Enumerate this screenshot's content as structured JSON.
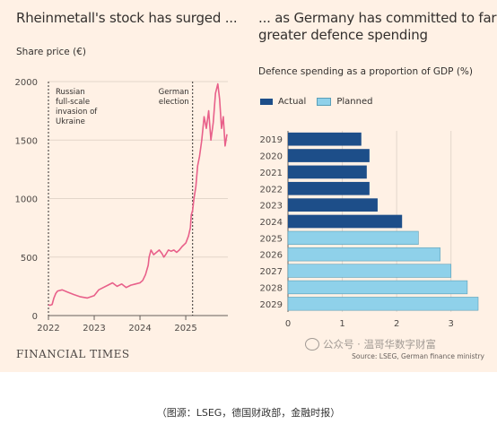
{
  "left_panel": {
    "title": "Rheinmetall's stock has surged ...",
    "subtitle": "Share price (€)",
    "annotations": [
      {
        "label_lines": [
          "Russian",
          "full-scale",
          "invasion of",
          "Ukraine"
        ],
        "x": 2022.0
      },
      {
        "label_lines": [
          "German",
          "election"
        ],
        "x": 2025.15
      }
    ]
  },
  "right_panel": {
    "title_lines": [
      "... as Germany has committed to far",
      "greater defence spending"
    ],
    "subtitle": "Defence spending as a proportion of GDP (%)",
    "legend": [
      {
        "label": "Actual",
        "color": "#1d4e89"
      },
      {
        "label": "Planned",
        "color": "#8fd1ea"
      }
    ]
  },
  "chart_data": [
    {
      "type": "line",
      "title": "Rheinmetall's stock has surged ...",
      "ylabel": "Share price (€)",
      "x_ticks": [
        "2022",
        "2023",
        "2024",
        "2025"
      ],
      "y_ticks": [
        "0",
        "500",
        "1000",
        "1500",
        "2000"
      ],
      "xlim": [
        2022.0,
        2025.92
      ],
      "ylim": [
        0,
        2000
      ],
      "grid": "horizontal",
      "color": "#e8608a",
      "series": [
        {
          "x": [
            2022.0,
            2022.04,
            2022.08,
            2022.12,
            2022.16,
            2022.2,
            2022.3,
            2022.42,
            2022.55,
            2022.7,
            2022.85,
            2023.0,
            2023.1,
            2023.2,
            2023.3,
            2023.4,
            2023.5,
            2023.6,
            2023.7,
            2023.8,
            2023.9,
            2024.0,
            2024.06,
            2024.12,
            2024.18,
            2024.2,
            2024.24,
            2024.3,
            2024.36,
            2024.42,
            2024.48,
            2024.52,
            2024.56,
            2024.62,
            2024.68,
            2024.74,
            2024.8,
            2024.86,
            2024.92,
            2025.0,
            2025.06,
            2025.1,
            2025.12,
            2025.15,
            2025.18,
            2025.22,
            2025.26,
            2025.3,
            2025.35,
            2025.4,
            2025.45,
            2025.5,
            2025.55,
            2025.6,
            2025.65,
            2025.7,
            2025.74,
            2025.78,
            2025.82,
            2025.86,
            2025.9
          ],
          "y": [
            90,
            88,
            95,
            150,
            190,
            210,
            220,
            200,
            180,
            160,
            150,
            170,
            220,
            240,
            260,
            280,
            250,
            270,
            240,
            260,
            270,
            280,
            300,
            350,
            430,
            500,
            560,
            520,
            540,
            560,
            530,
            500,
            520,
            560,
            550,
            560,
            540,
            560,
            590,
            620,
            680,
            750,
            860,
            900,
            1000,
            1100,
            1280,
            1360,
            1500,
            1700,
            1600,
            1750,
            1500,
            1650,
            1900,
            1980,
            1850,
            1600,
            1700,
            1450,
            1550
          ]
        }
      ]
    },
    {
      "type": "bar",
      "orientation": "horizontal",
      "title": "... as Germany has committed to far greater defence spending",
      "ylabel": "Defence spending as a proportion of GDP (%)",
      "categories": [
        "2019",
        "2020",
        "2021",
        "2022",
        "2023",
        "2024",
        "2025",
        "2026",
        "2027",
        "2028",
        "2029"
      ],
      "values": [
        1.35,
        1.5,
        1.45,
        1.5,
        1.65,
        2.1,
        2.4,
        2.8,
        3.0,
        3.3,
        3.5
      ],
      "status": [
        "Actual",
        "Actual",
        "Actual",
        "Actual",
        "Actual",
        "Actual",
        "Planned",
        "Planned",
        "Planned",
        "Planned",
        "Planned"
      ],
      "x_ticks": [
        "0",
        "1",
        "2",
        "3"
      ],
      "xlim": [
        0,
        3.5
      ],
      "grid": "vertical"
    }
  ],
  "footer": {
    "brand": "FINANCIAL TIMES",
    "source": "Source: LSEG, German finance ministry",
    "watermark": "公众号 · 温哥华数字财富"
  },
  "caption": "（图源：LSEG，德国财政部，金融时报）"
}
